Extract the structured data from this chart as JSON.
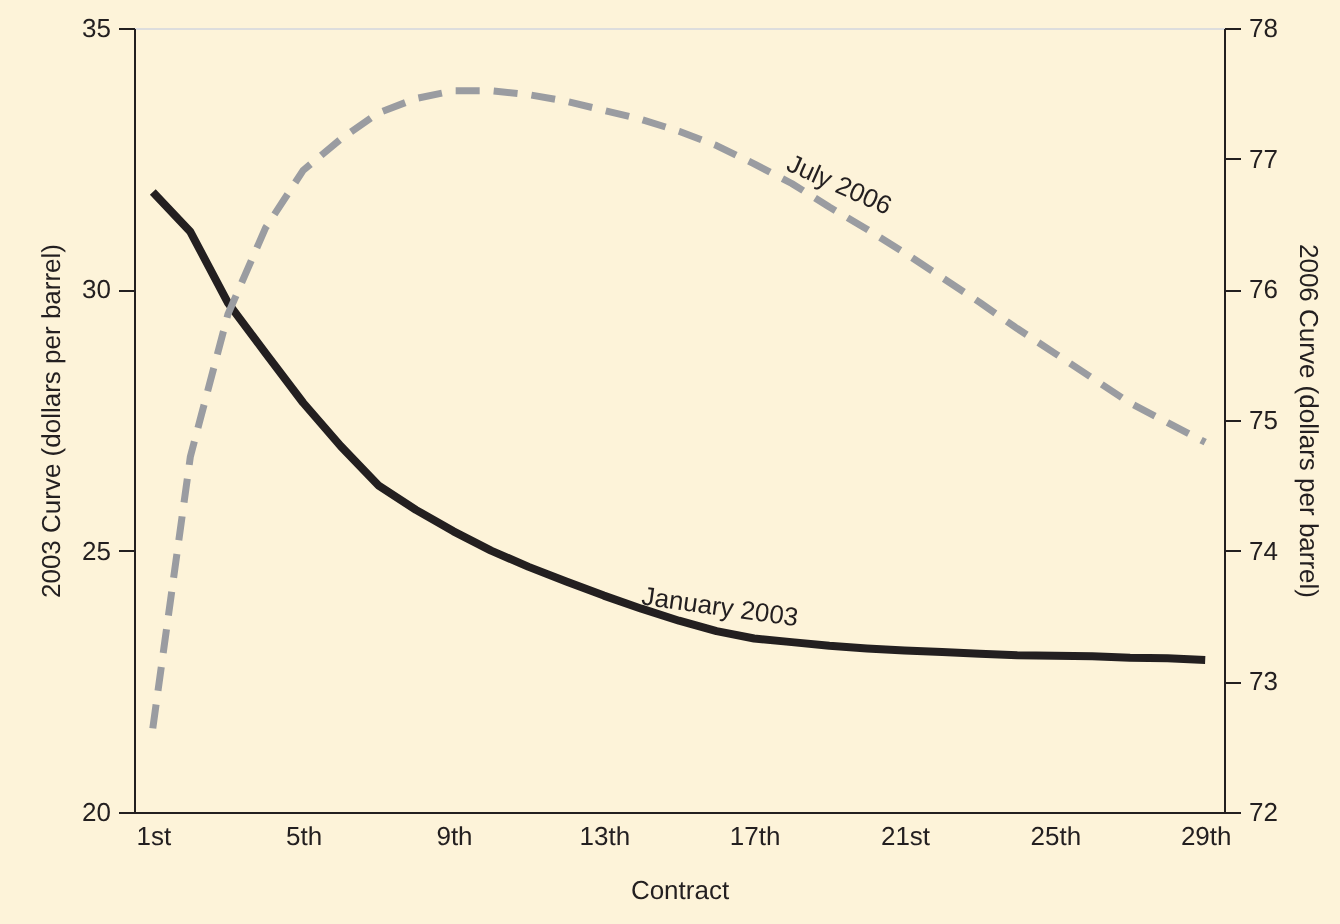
{
  "chart_data": {
    "type": "line",
    "xlabel": "Contract",
    "ylabel": "2003 Curve (dollars per barrel)",
    "y2label": "2006 Curve (dollars per barrel)",
    "x": [
      1,
      2,
      3,
      4,
      5,
      6,
      7,
      8,
      9,
      10,
      11,
      12,
      13,
      14,
      15,
      16,
      17,
      18,
      19,
      20,
      21,
      22,
      23,
      24,
      25,
      26,
      27,
      28,
      29
    ],
    "xlim": [
      0.5,
      29.5
    ],
    "xticks": [
      {
        "value": 1,
        "label": "1st"
      },
      {
        "value": 5,
        "label": "5th"
      },
      {
        "value": 9,
        "label": "9th"
      },
      {
        "value": 13,
        "label": "13th"
      },
      {
        "value": 17,
        "label": "17th"
      },
      {
        "value": 21,
        "label": "21st"
      },
      {
        "value": 25,
        "label": "25th"
      },
      {
        "value": 29,
        "label": "29th"
      }
    ],
    "ylim": [
      20,
      35
    ],
    "yticks": [
      20,
      25,
      30,
      35
    ],
    "y2lim": [
      72,
      78
    ],
    "y2ticks": [
      72,
      73,
      74,
      75,
      76,
      77,
      78
    ],
    "series": [
      {
        "name": "January 2003",
        "color": "#231f20",
        "line_style": "solid",
        "values": [
          31.86,
          31.1,
          29.74,
          28.78,
          27.83,
          27.0,
          26.25,
          25.78,
          25.37,
          25.0,
          24.69,
          24.41,
          24.14,
          23.89,
          23.66,
          23.46,
          23.32,
          23.25,
          23.18,
          23.13,
          23.09,
          23.06,
          23.03,
          23.0,
          22.99,
          22.98,
          22.95,
          22.94,
          22.91
        ]
      },
      {
        "name": "July 2006",
        "color": "#9a9ca1",
        "line_style": "dashed",
        "axis": "y2",
        "values": [
          72.64,
          74.72,
          75.81,
          76.47,
          76.91,
          77.15,
          77.35,
          77.46,
          77.52,
          77.52,
          77.49,
          77.44,
          77.37,
          77.3,
          77.21,
          77.1,
          76.96,
          76.81,
          76.63,
          76.46,
          76.28,
          76.09,
          75.9,
          75.7,
          75.51,
          75.32,
          75.13,
          74.98,
          74.83
        ]
      }
    ],
    "grid": false,
    "marker": "none"
  }
}
